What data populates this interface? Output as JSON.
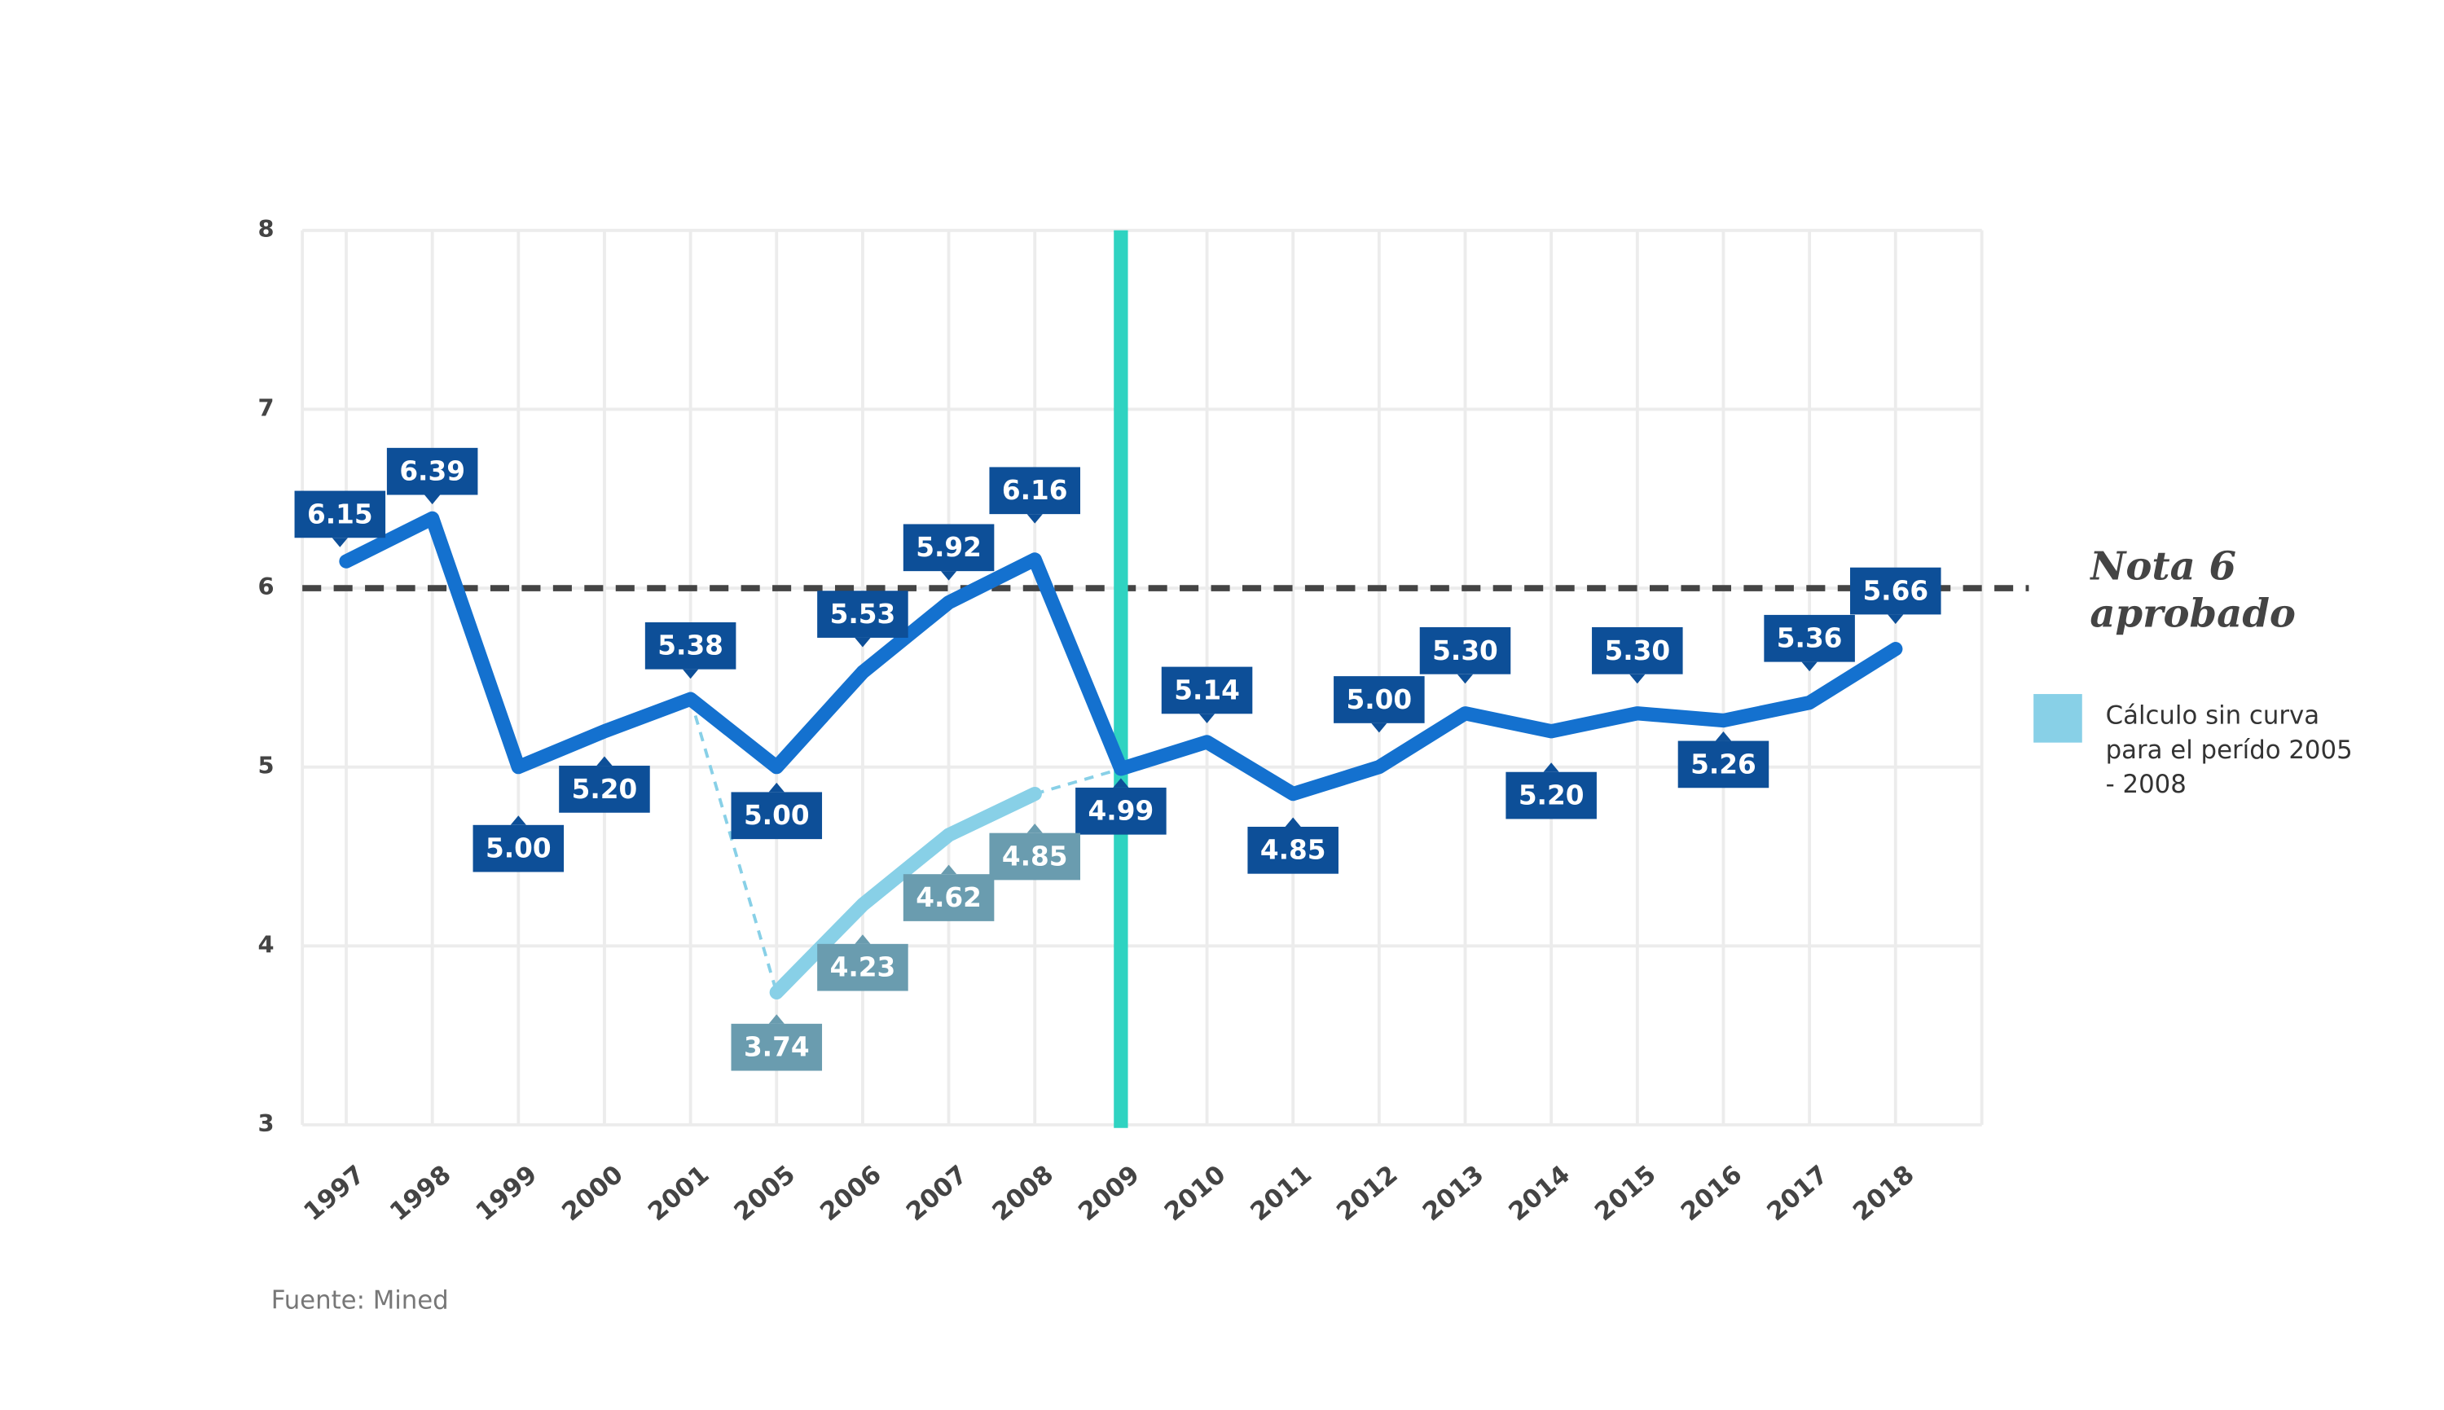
{
  "chart_data": {
    "type": "line",
    "categories": [
      "1997",
      "1998",
      "1999",
      "2000",
      "2001",
      "2005",
      "2006",
      "2007",
      "2008",
      "2009",
      "2010",
      "2011",
      "2012",
      "2013",
      "2014",
      "2015",
      "2016",
      "2017",
      "2018"
    ],
    "series": [
      {
        "name": null,
        "color": "#1471cf",
        "values": [
          6.15,
          6.39,
          5.0,
          5.2,
          5.38,
          5.0,
          5.53,
          5.92,
          6.16,
          4.99,
          5.14,
          4.85,
          5.0,
          5.3,
          5.2,
          5.3,
          5.26,
          5.36,
          5.66
        ],
        "value_labels": [
          "6.15",
          "6.39",
          "5.00",
          "5.20",
          "5.38",
          "5.00",
          "5.53",
          "5.92",
          "6.16",
          "4.99",
          "5.14",
          "4.85",
          "5.00",
          "5.30",
          "5.20",
          "5.30",
          "5.26",
          "5.36",
          "5.66"
        ]
      },
      {
        "name": "Cálculo sin curva para el perído 2005 - 2008",
        "color": "#88d0e7",
        "values": [
          null,
          null,
          null,
          null,
          null,
          3.74,
          4.23,
          4.62,
          4.85,
          null,
          null,
          null,
          null,
          null,
          null,
          null,
          null,
          null,
          null
        ],
        "value_labels": [
          null,
          null,
          null,
          null,
          null,
          "3.74",
          "4.23",
          "4.62",
          "4.85",
          null,
          null,
          null,
          null,
          null,
          null,
          null,
          null,
          null,
          null
        ]
      }
    ],
    "ylim": [
      3,
      8
    ],
    "yticks": [
      3,
      4,
      5,
      6,
      7,
      8
    ],
    "grid": true,
    "reference_line": {
      "value": 6,
      "label": "Nota 6 aprobado"
    },
    "vertical_marker": {
      "category": "2009",
      "color": "#2fd3c1"
    },
    "source": "Fuente: Mined"
  }
}
